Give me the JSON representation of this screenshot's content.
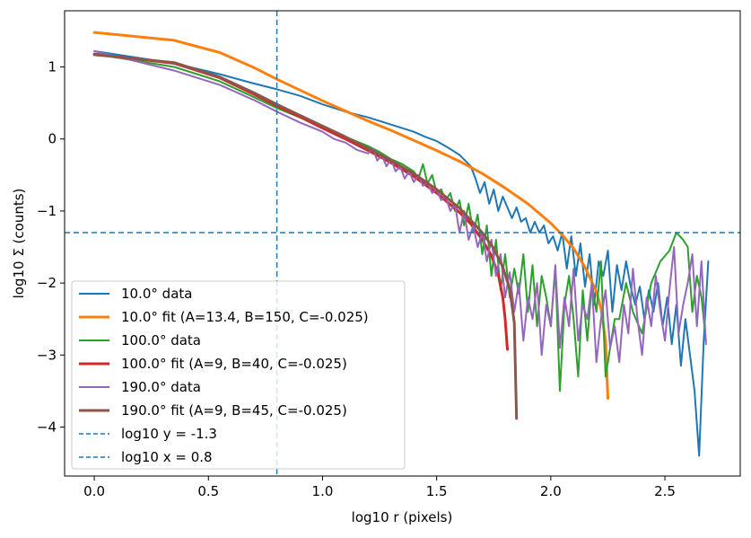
{
  "chart_data": {
    "type": "line",
    "title": "",
    "xlabel": "log10 r (pixels)",
    "ylabel": "log10 Σ (counts)",
    "xlim": [
      -0.13,
      2.83
    ],
    "ylim": [
      -4.68,
      1.78
    ],
    "xticks": [
      0.0,
      0.5,
      1.0,
      1.5,
      2.0,
      2.5
    ],
    "xtick_labels": [
      "0.0",
      "0.5",
      "1.0",
      "1.5",
      "2.0",
      "2.5"
    ],
    "yticks": [
      -4,
      -3,
      -2,
      -1,
      0,
      1
    ],
    "ytick_labels": [
      "−4",
      "−3",
      "−2",
      "−1",
      "0",
      "1"
    ],
    "legend_position": "lower-left",
    "reference_lines": [
      {
        "name": "log10 y = -1.3",
        "orientation": "horizontal",
        "value": -1.3,
        "color": "#1f77b4",
        "style": "dashed"
      },
      {
        "name": "log10 x = 0.8",
        "orientation": "vertical",
        "value": 0.8,
        "color": "#1f77b4",
        "style": "dashed"
      }
    ],
    "series": [
      {
        "name": "10.0° data",
        "color": "#1f77b4",
        "width": 2,
        "points": [
          [
            0,
            1.22
          ],
          [
            0.35,
            1.05
          ],
          [
            0.55,
            0.9
          ],
          [
            0.7,
            0.77
          ],
          [
            0.8,
            0.69
          ],
          [
            0.9,
            0.6
          ],
          [
            1.0,
            0.48
          ],
          [
            1.1,
            0.38
          ],
          [
            1.2,
            0.3
          ],
          [
            1.3,
            0.2
          ],
          [
            1.4,
            0.1
          ],
          [
            1.45,
            0.03
          ],
          [
            1.5,
            -0.03
          ],
          [
            1.55,
            -0.12
          ],
          [
            1.6,
            -0.22
          ],
          [
            1.65,
            -0.38
          ],
          [
            1.67,
            -0.55
          ],
          [
            1.69,
            -0.75
          ],
          [
            1.71,
            -0.6
          ],
          [
            1.73,
            -0.9
          ],
          [
            1.75,
            -0.7
          ],
          [
            1.77,
            -1.0
          ],
          [
            1.79,
            -0.8
          ],
          [
            1.81,
            -0.95
          ],
          [
            1.83,
            -1.1
          ],
          [
            1.85,
            -0.95
          ],
          [
            1.87,
            -1.15
          ],
          [
            1.89,
            -1.1
          ],
          [
            1.91,
            -1.3
          ],
          [
            1.93,
            -1.15
          ],
          [
            1.95,
            -1.3
          ],
          [
            1.97,
            -1.2
          ],
          [
            1.99,
            -1.45
          ],
          [
            2.01,
            -1.35
          ],
          [
            2.03,
            -1.55
          ],
          [
            2.05,
            -1.3
          ],
          [
            2.07,
            -1.8
          ],
          [
            2.09,
            -1.35
          ],
          [
            2.11,
            -1.9
          ],
          [
            2.13,
            -1.45
          ],
          [
            2.15,
            -2.05
          ],
          [
            2.17,
            -1.6
          ],
          [
            2.19,
            -2.3
          ],
          [
            2.21,
            -1.7
          ],
          [
            2.23,
            -1.9
          ],
          [
            2.25,
            -1.55
          ],
          [
            2.27,
            -2.4
          ],
          [
            2.29,
            -1.75
          ],
          [
            2.31,
            -2.1
          ],
          [
            2.33,
            -1.7
          ],
          [
            2.35,
            -2.05
          ],
          [
            2.37,
            -2.3
          ],
          [
            2.39,
            -2.05
          ],
          [
            2.41,
            -2.5
          ],
          [
            2.43,
            -2.1
          ],
          [
            2.45,
            -2.4
          ],
          [
            2.47,
            -2.0
          ],
          [
            2.49,
            -2.6
          ],
          [
            2.51,
            -2.2
          ],
          [
            2.53,
            -2.85
          ],
          [
            2.55,
            -2.3
          ],
          [
            2.57,
            -3.15
          ],
          [
            2.59,
            -2.5
          ],
          [
            2.61,
            -3.0
          ],
          [
            2.63,
            -3.5
          ],
          [
            2.65,
            -4.4
          ],
          [
            2.67,
            -2.8
          ],
          [
            2.69,
            -1.7
          ]
        ]
      },
      {
        "name": "10.0° fit (A=13.4, B=150, C=-0.025)",
        "color": "#ff7f0e",
        "width": 3,
        "points": [
          [
            0,
            1.48
          ],
          [
            0.35,
            1.37
          ],
          [
            0.55,
            1.2
          ],
          [
            0.7,
            0.99
          ],
          [
            0.8,
            0.83
          ],
          [
            0.9,
            0.68
          ],
          [
            1.0,
            0.53
          ],
          [
            1.1,
            0.39
          ],
          [
            1.2,
            0.25
          ],
          [
            1.3,
            0.12
          ],
          [
            1.4,
            -0.02
          ],
          [
            1.5,
            -0.16
          ],
          [
            1.6,
            -0.31
          ],
          [
            1.7,
            -0.48
          ],
          [
            1.8,
            -0.68
          ],
          [
            1.9,
            -0.9
          ],
          [
            2.0,
            -1.17
          ],
          [
            2.05,
            -1.33
          ],
          [
            2.1,
            -1.52
          ],
          [
            2.15,
            -1.78
          ],
          [
            2.2,
            -2.12
          ],
          [
            2.22,
            -2.35
          ],
          [
            2.24,
            -2.8
          ],
          [
            2.25,
            -3.6
          ]
        ]
      },
      {
        "name": "100.0° data",
        "color": "#2ca02c",
        "width": 2,
        "points": [
          [
            0,
            1.18
          ],
          [
            0.35,
            1.0
          ],
          [
            0.55,
            0.8
          ],
          [
            0.7,
            0.58
          ],
          [
            0.8,
            0.43
          ],
          [
            0.9,
            0.3
          ],
          [
            1.0,
            0.17
          ],
          [
            1.1,
            0.03
          ],
          [
            1.2,
            -0.1
          ],
          [
            1.25,
            -0.18
          ],
          [
            1.3,
            -0.28
          ],
          [
            1.35,
            -0.35
          ],
          [
            1.4,
            -0.45
          ],
          [
            1.42,
            -0.55
          ],
          [
            1.44,
            -0.35
          ],
          [
            1.46,
            -0.62
          ],
          [
            1.48,
            -0.5
          ],
          [
            1.5,
            -0.75
          ],
          [
            1.52,
            -0.7
          ],
          [
            1.54,
            -0.85
          ],
          [
            1.56,
            -0.75
          ],
          [
            1.58,
            -1.0
          ],
          [
            1.6,
            -0.85
          ],
          [
            1.62,
            -1.2
          ],
          [
            1.64,
            -0.9
          ],
          [
            1.66,
            -1.3
          ],
          [
            1.68,
            -1.05
          ],
          [
            1.7,
            -1.6
          ],
          [
            1.72,
            -1.2
          ],
          [
            1.74,
            -1.9
          ],
          [
            1.76,
            -1.4
          ],
          [
            1.78,
            -2.1
          ],
          [
            1.8,
            -1.6
          ],
          [
            1.82,
            -2.2
          ],
          [
            1.84,
            -1.8
          ],
          [
            1.86,
            -2.15
          ],
          [
            1.88,
            -1.6
          ],
          [
            1.9,
            -2.4
          ],
          [
            1.92,
            -1.75
          ],
          [
            1.94,
            -2.6
          ],
          [
            1.96,
            -1.9
          ],
          [
            1.98,
            -2.2
          ],
          [
            2.0,
            -2.6
          ],
          [
            2.02,
            -1.8
          ],
          [
            2.04,
            -3.5
          ],
          [
            2.06,
            -2.3
          ],
          [
            2.08,
            -1.9
          ],
          [
            2.1,
            -2.5
          ],
          [
            2.12,
            -3.3
          ],
          [
            2.14,
            -2.1
          ],
          [
            2.16,
            -2.8
          ],
          [
            2.18,
            -2.0
          ],
          [
            2.2,
            -2.4
          ],
          [
            2.22,
            -1.7
          ],
          [
            2.24,
            -3.3
          ],
          [
            2.26,
            -2.9
          ],
          [
            2.28,
            -2.5
          ],
          [
            2.3,
            -2.5
          ],
          [
            2.33,
            -2.0
          ],
          [
            2.36,
            -2.4
          ],
          [
            2.4,
            -2.7
          ],
          [
            2.44,
            -2.0
          ],
          [
            2.48,
            -1.7
          ],
          [
            2.52,
            -1.55
          ],
          [
            2.55,
            -1.3
          ],
          [
            2.58,
            -1.4
          ],
          [
            2.6,
            -1.5
          ],
          [
            2.62,
            -2.4
          ],
          [
            2.64,
            -1.9
          ],
          [
            2.66,
            -2.2
          ],
          [
            2.68,
            -2.8
          ]
        ]
      },
      {
        "name": "100.0° fit (A=9, B=40, C=-0.025)",
        "color": "#d62728",
        "width": 3,
        "points": [
          [
            0,
            1.18
          ],
          [
            0.35,
            1.05
          ],
          [
            0.55,
            0.85
          ],
          [
            0.7,
            0.62
          ],
          [
            0.8,
            0.46
          ],
          [
            0.9,
            0.31
          ],
          [
            1.0,
            0.15
          ],
          [
            1.1,
            0.0
          ],
          [
            1.2,
            -0.16
          ],
          [
            1.3,
            -0.33
          ],
          [
            1.4,
            -0.52
          ],
          [
            1.5,
            -0.75
          ],
          [
            1.6,
            -1.02
          ],
          [
            1.65,
            -1.18
          ],
          [
            1.7,
            -1.4
          ],
          [
            1.74,
            -1.62
          ],
          [
            1.77,
            -1.88
          ],
          [
            1.79,
            -2.2
          ],
          [
            1.8,
            -2.5
          ],
          [
            1.81,
            -2.92
          ]
        ]
      },
      {
        "name": "190.0° data",
        "color": "#9467bd",
        "width": 2,
        "points": [
          [
            0,
            1.22
          ],
          [
            0.35,
            0.95
          ],
          [
            0.55,
            0.75
          ],
          [
            0.7,
            0.54
          ],
          [
            0.8,
            0.38
          ],
          [
            0.9,
            0.23
          ],
          [
            1.0,
            0.1
          ],
          [
            1.05,
            0.0
          ],
          [
            1.1,
            -0.05
          ],
          [
            1.15,
            -0.15
          ],
          [
            1.2,
            -0.2
          ],
          [
            1.22,
            -0.13
          ],
          [
            1.24,
            -0.3
          ],
          [
            1.26,
            -0.22
          ],
          [
            1.28,
            -0.38
          ],
          [
            1.3,
            -0.28
          ],
          [
            1.32,
            -0.45
          ],
          [
            1.34,
            -0.38
          ],
          [
            1.36,
            -0.55
          ],
          [
            1.38,
            -0.45
          ],
          [
            1.4,
            -0.6
          ],
          [
            1.42,
            -0.5
          ],
          [
            1.44,
            -0.65
          ],
          [
            1.46,
            -0.6
          ],
          [
            1.48,
            -0.75
          ],
          [
            1.5,
            -0.7
          ],
          [
            1.52,
            -0.85
          ],
          [
            1.54,
            -0.8
          ],
          [
            1.56,
            -1.0
          ],
          [
            1.58,
            -0.9
          ],
          [
            1.6,
            -1.3
          ],
          [
            1.62,
            -1.0
          ],
          [
            1.64,
            -1.4
          ],
          [
            1.66,
            -1.2
          ],
          [
            1.68,
            -1.5
          ],
          [
            1.7,
            -1.3
          ],
          [
            1.72,
            -1.7
          ],
          [
            1.74,
            -1.4
          ],
          [
            1.76,
            -1.9
          ],
          [
            1.78,
            -1.6
          ],
          [
            1.8,
            -2.2
          ],
          [
            1.82,
            -1.85
          ],
          [
            1.84,
            -2.4
          ],
          [
            1.86,
            -2.0
          ],
          [
            1.88,
            -2.8
          ],
          [
            1.9,
            -2.2
          ],
          [
            1.92,
            -2.5
          ],
          [
            1.94,
            -2.0
          ],
          [
            1.96,
            -3.0
          ],
          [
            1.98,
            -2.3
          ],
          [
            2.0,
            -2.6
          ],
          [
            2.02,
            -1.75
          ],
          [
            2.04,
            -2.9
          ],
          [
            2.06,
            -2.2
          ],
          [
            2.08,
            -2.6
          ],
          [
            2.1,
            -1.8
          ],
          [
            2.12,
            -2.8
          ],
          [
            2.14,
            -2.3
          ],
          [
            2.16,
            -2.5
          ],
          [
            2.18,
            -2.0
          ],
          [
            2.2,
            -3.1
          ],
          [
            2.22,
            -2.5
          ],
          [
            2.24,
            -2.1
          ],
          [
            2.26,
            -2.9
          ],
          [
            2.28,
            -2.6
          ],
          [
            2.3,
            -3.1
          ],
          [
            2.32,
            -2.3
          ],
          [
            2.34,
            -2.7
          ],
          [
            2.36,
            -1.8
          ],
          [
            2.38,
            -2.5
          ],
          [
            2.4,
            -3.0
          ],
          [
            2.42,
            -2.2
          ],
          [
            2.44,
            -2.6
          ],
          [
            2.46,
            -1.9
          ],
          [
            2.48,
            -2.4
          ],
          [
            2.5,
            -2.8
          ],
          [
            2.52,
            -2.1
          ],
          [
            2.54,
            -1.5
          ],
          [
            2.56,
            -2.7
          ],
          [
            2.58,
            -2.3
          ],
          [
            2.6,
            -2.0
          ],
          [
            2.62,
            -1.6
          ],
          [
            2.64,
            -2.6
          ],
          [
            2.66,
            -1.7
          ],
          [
            2.68,
            -2.85
          ]
        ]
      },
      {
        "name": "190.0° fit (A=9, B=45, C=-0.025)",
        "color": "#8c564b",
        "width": 3,
        "points": [
          [
            0,
            1.17
          ],
          [
            0.35,
            1.06
          ],
          [
            0.55,
            0.86
          ],
          [
            0.7,
            0.64
          ],
          [
            0.8,
            0.48
          ],
          [
            0.9,
            0.33
          ],
          [
            1.0,
            0.18
          ],
          [
            1.1,
            0.03
          ],
          [
            1.2,
            -0.13
          ],
          [
            1.3,
            -0.3
          ],
          [
            1.4,
            -0.48
          ],
          [
            1.5,
            -0.7
          ],
          [
            1.6,
            -0.96
          ],
          [
            1.7,
            -1.3
          ],
          [
            1.75,
            -1.52
          ],
          [
            1.79,
            -1.78
          ],
          [
            1.82,
            -2.08
          ],
          [
            1.84,
            -2.55
          ],
          [
            1.85,
            -3.88
          ]
        ]
      }
    ],
    "legend_entries": [
      {
        "label": "10.0° data",
        "color": "#1f77b4",
        "style": "solid"
      },
      {
        "label": "10.0° fit (A=13.4, B=150, C=-0.025)",
        "color": "#ff7f0e",
        "style": "solid"
      },
      {
        "label": "100.0° data",
        "color": "#2ca02c",
        "style": "solid"
      },
      {
        "label": "100.0° fit (A=9, B=40, C=-0.025)",
        "color": "#d62728",
        "style": "solid"
      },
      {
        "label": "190.0° data",
        "color": "#9467bd",
        "style": "solid"
      },
      {
        "label": "190.0° fit (A=9, B=45, C=-0.025)",
        "color": "#8c564b",
        "style": "solid"
      },
      {
        "label": "log10 y = -1.3",
        "color": "#1f77b4",
        "style": "dashed"
      },
      {
        "label": "log10 x = 0.8",
        "color": "#1f77b4",
        "style": "dashed"
      }
    ]
  }
}
